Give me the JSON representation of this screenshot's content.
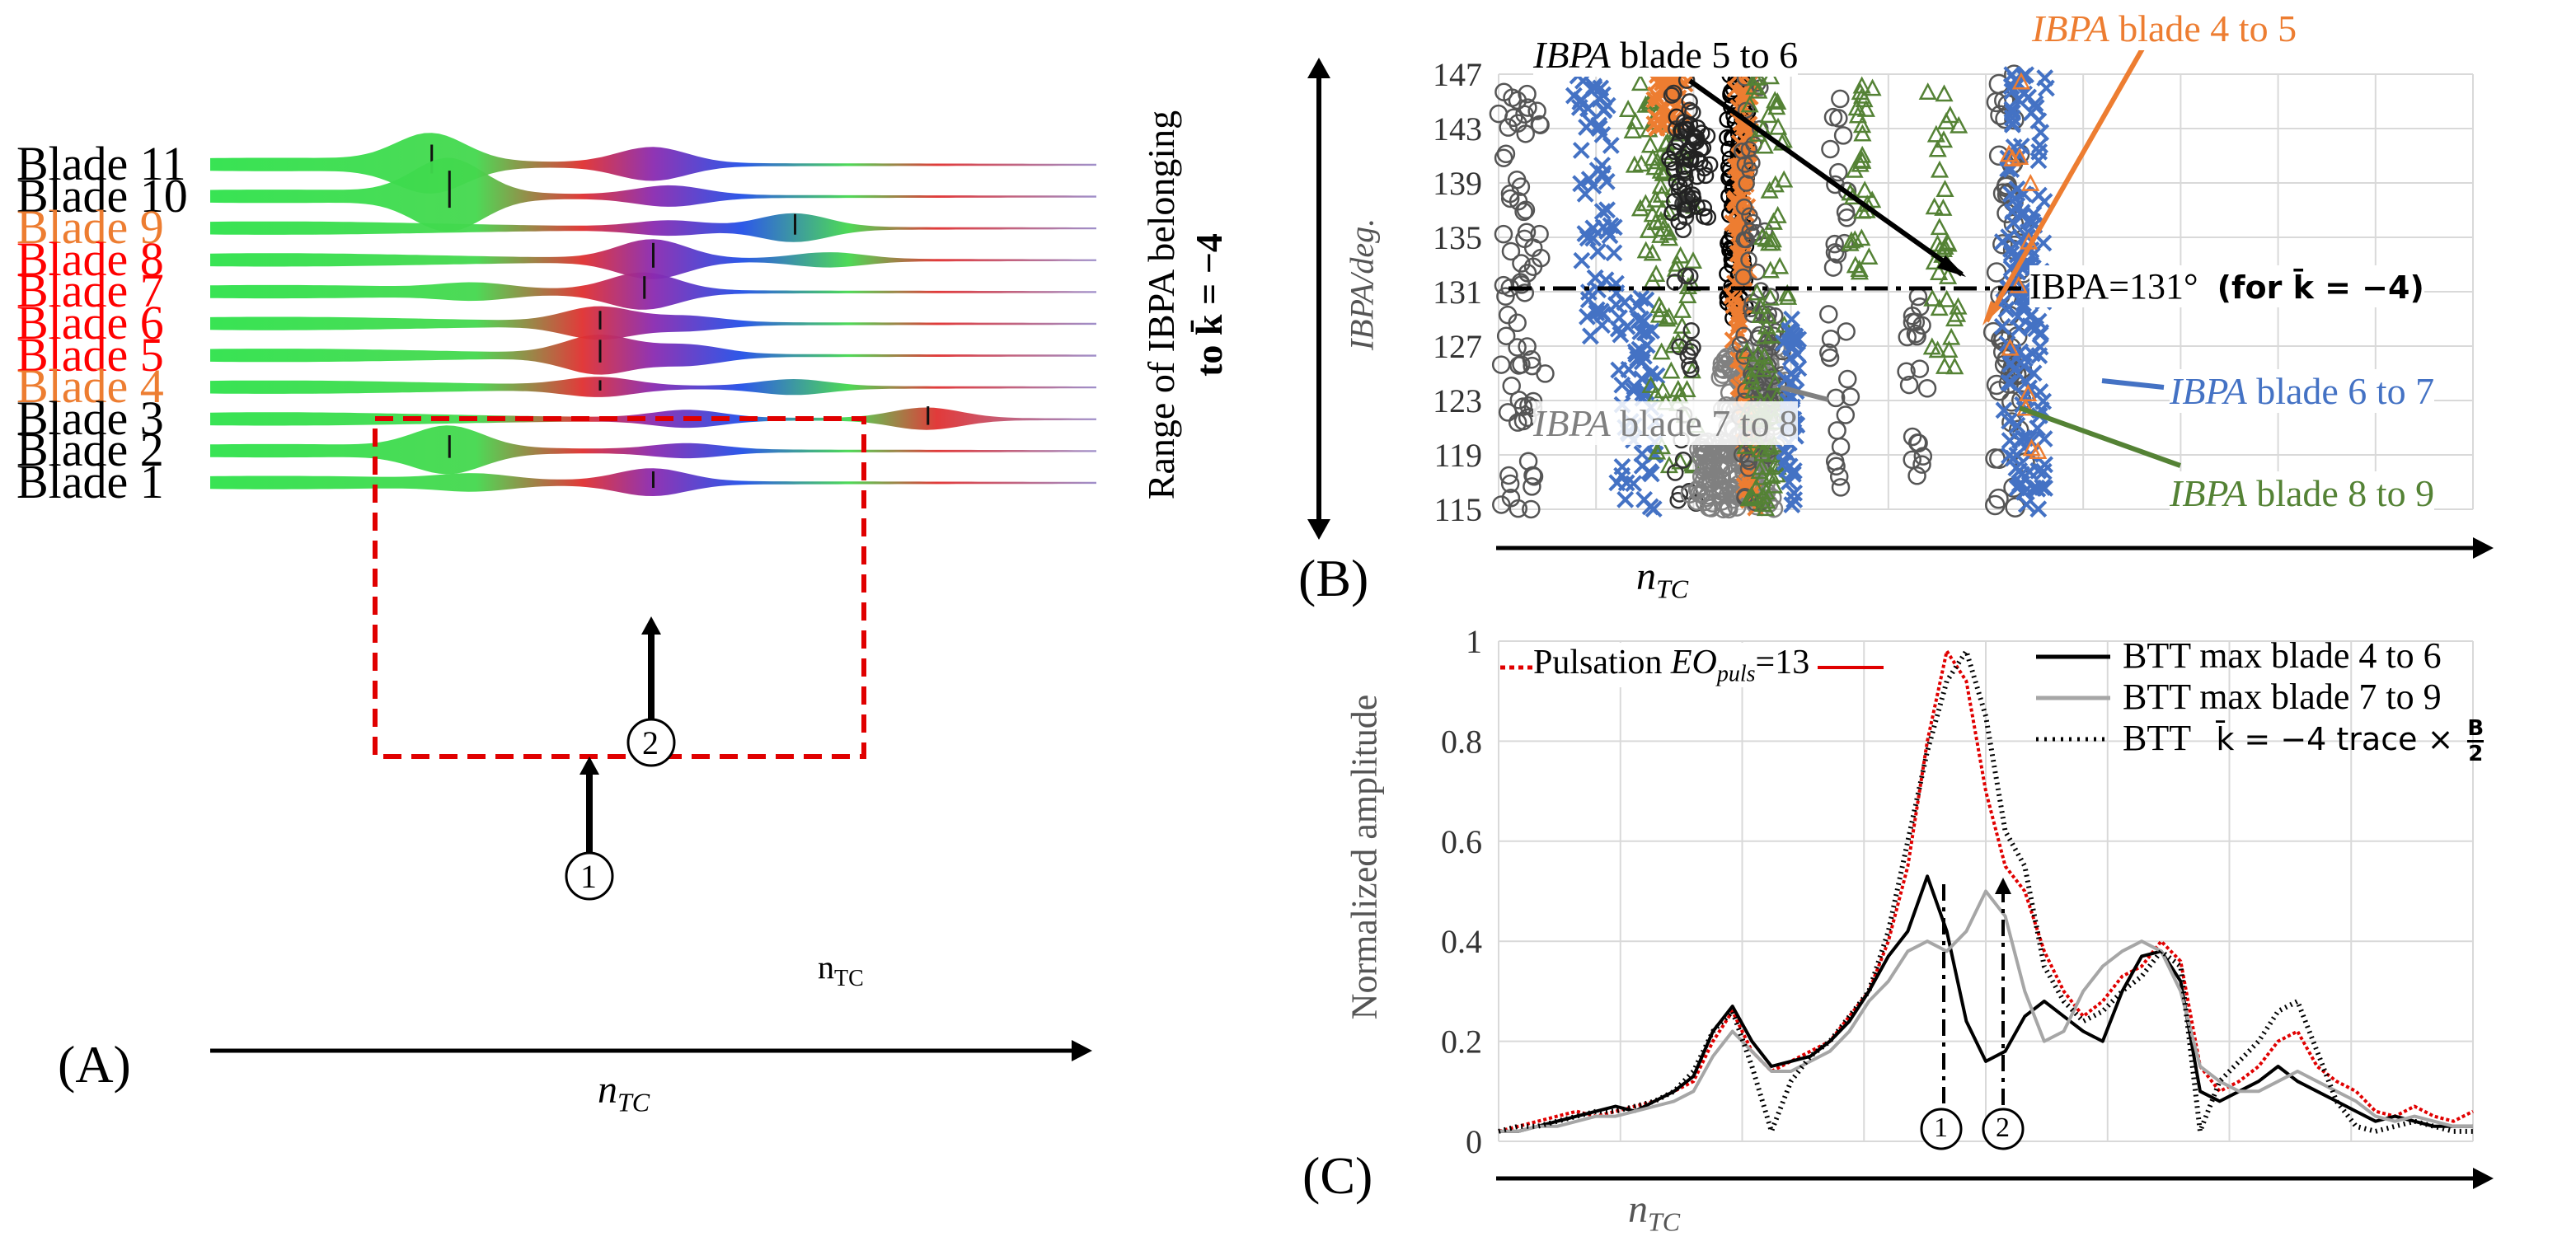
{
  "panels": {
    "a": {
      "label": "(A)",
      "x_axis_label_main": "n",
      "x_axis_label_sub": "TC",
      "inner_label": "n",
      "inner_label_sub": "TC",
      "markers": [
        "①",
        "②"
      ],
      "highlight_color": "#e00000"
    },
    "b": {
      "label": "(B)",
      "y_range_label_line1": "Range of IBPA belonging",
      "y_range_label_line2": "to k̄ = −4",
      "ylabel": "IBPA/deg.",
      "xlabel_main": "n",
      "xlabel_sub": "TC",
      "reference_line_label": "IBPA=131°",
      "reference_line_note": "(for k̄ = −4)",
      "annotations": [
        {
          "italic": "IBPA",
          "rest": " blade 5 to 6",
          "color": "#000000"
        },
        {
          "italic": "IBPA",
          "rest": " blade 4 to 5",
          "color": "#ed7d31"
        },
        {
          "italic": "IBPA",
          "rest": " blade 7 to 8",
          "color": "#808080"
        },
        {
          "italic": "IBPA",
          "rest": " blade 6 to 7",
          "color": "#4472c4"
        },
        {
          "italic": "IBPA",
          "rest": " blade 8 to 9",
          "color": "#548235"
        }
      ]
    },
    "c": {
      "label": "(C)",
      "ylabel": "Normalized amplitude",
      "xlabel_main": "n",
      "xlabel_sub": "TC",
      "markers": [
        "①",
        "②"
      ],
      "legend": [
        {
          "text": "BTT max blade 4 to 6",
          "color": "#000000",
          "dash": "solid"
        },
        {
          "text": "BTT max blade 7 to 9",
          "color": "#a6a6a6",
          "dash": "solid"
        },
        {
          "text": "BTT",
          "extra": "k̄ = −4 trace ×",
          "frac_num": "B",
          "frac_den": "2",
          "color": "#000000",
          "dash": "dotted"
        }
      ],
      "pulsation_label_pre": "Pulsation ",
      "pulsation_label_eo": "EO",
      "pulsation_label_sub": "puls",
      "pulsation_label_post": "=13",
      "pulsation_color": "#e00000"
    }
  },
  "blades": [
    {
      "label": "Blade 11",
      "color": "#000000",
      "bulbs": [
        [
          0.25,
          70
        ],
        [
          0.5,
          50
        ]
      ]
    },
    {
      "label": "Blade 10",
      "color": "#000000",
      "bulbs": [
        [
          0.27,
          90
        ],
        [
          0.52,
          30
        ]
      ]
    },
    {
      "label": "Blade 9",
      "color": "#ed7d31",
      "bulbs": [
        [
          0.66,
          50
        ],
        [
          0.52,
          20
        ]
      ]
    },
    {
      "label": "Blade 8",
      "color": "#ff0000",
      "bulbs": [
        [
          0.5,
          60
        ],
        [
          0.7,
          25
        ]
      ]
    },
    {
      "label": "Blade 7",
      "color": "#ff0000",
      "bulbs": [
        [
          0.49,
          55
        ],
        [
          0.3,
          15
        ]
      ]
    },
    {
      "label": "Blade 6",
      "color": "#ff0000",
      "bulbs": [
        [
          0.44,
          45
        ],
        [
          0.54,
          20
        ]
      ]
    },
    {
      "label": "Blade 5",
      "color": "#ff0000",
      "bulbs": [
        [
          0.44,
          55
        ],
        [
          0.54,
          30
        ]
      ]
    },
    {
      "label": "Blade 4",
      "color": "#ed7d31",
      "bulbs": [
        [
          0.44,
          25
        ],
        [
          0.66,
          25
        ]
      ]
    },
    {
      "label": "Blade 3",
      "color": "#000000",
      "bulbs": [
        [
          0.81,
          45
        ],
        [
          0.54,
          25
        ]
      ]
    },
    {
      "label": "Blade 2",
      "color": "#000000",
      "bulbs": [
        [
          0.27,
          55
        ],
        [
          0.54,
          20
        ]
      ]
    },
    {
      "label": "Blade 1",
      "color": "#000000",
      "bulbs": [
        [
          0.5,
          40
        ],
        [
          0.3,
          15
        ]
      ]
    }
  ],
  "chart_data": [
    {
      "type": "scatter",
      "panel": "B",
      "ylabel": "IBPA/deg.",
      "xlabel": "nTC",
      "ylim": [
        115,
        147
      ],
      "yticks": [
        115,
        119,
        123,
        127,
        131,
        135,
        139,
        143,
        147
      ],
      "reference_y": 131,
      "grid": true,
      "colors": {
        "blade4to5": "#ed7d31",
        "blade5to6": "#000000",
        "blade6to7": "#4472c4",
        "blade7to8": "#808080",
        "blade8to9": "#548235"
      }
    },
    {
      "type": "line",
      "panel": "C",
      "ylabel": "Normalized amplitude",
      "xlabel": "nTC",
      "ylim": [
        0,
        1
      ],
      "yticks": [
        0,
        0.2,
        0.4,
        0.6,
        0.8,
        1
      ],
      "ytick_labels": [
        "0",
        "0.2",
        "0.4",
        "0.6",
        "0.8",
        "1"
      ],
      "grid": true,
      "x": [
        0,
        0.02,
        0.04,
        0.06,
        0.08,
        0.1,
        0.12,
        0.14,
        0.16,
        0.18,
        0.2,
        0.22,
        0.24,
        0.26,
        0.28,
        0.3,
        0.32,
        0.34,
        0.36,
        0.38,
        0.4,
        0.42,
        0.44,
        0.46,
        0.48,
        0.5,
        0.52,
        0.54,
        0.56,
        0.58,
        0.6,
        0.62,
        0.64,
        0.66,
        0.68,
        0.7,
        0.72,
        0.74,
        0.76,
        0.78,
        0.8,
        0.82,
        0.84,
        0.86,
        0.88,
        0.9,
        0.92,
        0.94,
        0.96,
        0.98,
        1
      ],
      "series": [
        {
          "name": "Pulsation EOpuls=13",
          "color": "#e00000",
          "dash": "4,3",
          "values": [
            0.02,
            0.03,
            0.04,
            0.05,
            0.06,
            0.05,
            0.06,
            0.07,
            0.08,
            0.1,
            0.12,
            0.2,
            0.26,
            0.18,
            0.14,
            0.16,
            0.18,
            0.2,
            0.25,
            0.3,
            0.4,
            0.55,
            0.8,
            0.98,
            0.92,
            0.7,
            0.55,
            0.5,
            0.38,
            0.3,
            0.25,
            0.28,
            0.33,
            0.35,
            0.4,
            0.36,
            0.15,
            0.1,
            0.12,
            0.15,
            0.2,
            0.22,
            0.15,
            0.12,
            0.1,
            0.06,
            0.05,
            0.07,
            0.05,
            0.04,
            0.06
          ]
        },
        {
          "name": "BTT max blade 4 to 6",
          "color": "#000000",
          "dash": "none",
          "values": [
            0.02,
            0.02,
            0.03,
            0.04,
            0.05,
            0.06,
            0.07,
            0.06,
            0.08,
            0.1,
            0.13,
            0.22,
            0.27,
            0.2,
            0.15,
            0.16,
            0.17,
            0.2,
            0.24,
            0.3,
            0.37,
            0.42,
            0.53,
            0.42,
            0.24,
            0.16,
            0.18,
            0.25,
            0.28,
            0.25,
            0.22,
            0.2,
            0.3,
            0.37,
            0.38,
            0.32,
            0.1,
            0.08,
            0.1,
            0.12,
            0.15,
            0.12,
            0.1,
            0.08,
            0.06,
            0.04,
            0.05,
            0.04,
            0.03,
            0.03,
            0.03
          ]
        },
        {
          "name": "BTT max blade 7 to 9",
          "color": "#a6a6a6",
          "dash": "none",
          "values": [
            0.02,
            0.02,
            0.03,
            0.03,
            0.04,
            0.05,
            0.05,
            0.06,
            0.07,
            0.08,
            0.1,
            0.17,
            0.22,
            0.18,
            0.14,
            0.14,
            0.16,
            0.18,
            0.22,
            0.28,
            0.32,
            0.38,
            0.4,
            0.38,
            0.42,
            0.5,
            0.45,
            0.3,
            0.2,
            0.22,
            0.3,
            0.35,
            0.38,
            0.4,
            0.38,
            0.3,
            0.15,
            0.12,
            0.1,
            0.1,
            0.12,
            0.14,
            0.12,
            0.1,
            0.08,
            0.05,
            0.04,
            0.05,
            0.04,
            0.03,
            0.03
          ]
        },
        {
          "name": "BTT k̄ = −4 trace × B/2",
          "color": "#000000",
          "dash": "2,5",
          "values": [
            0.02,
            0.03,
            0.03,
            0.04,
            0.05,
            0.06,
            0.06,
            0.07,
            0.08,
            0.1,
            0.14,
            0.22,
            0.26,
            0.15,
            0.02,
            0.12,
            0.17,
            0.2,
            0.25,
            0.3,
            0.42,
            0.6,
            0.78,
            0.92,
            0.98,
            0.85,
            0.62,
            0.55,
            0.35,
            0.28,
            0.24,
            0.26,
            0.3,
            0.33,
            0.38,
            0.35,
            0.02,
            0.12,
            0.16,
            0.2,
            0.26,
            0.28,
            0.18,
            0.08,
            0.03,
            0.02,
            0.03,
            0.04,
            0.03,
            0.02,
            0.02
          ]
        }
      ]
    }
  ]
}
